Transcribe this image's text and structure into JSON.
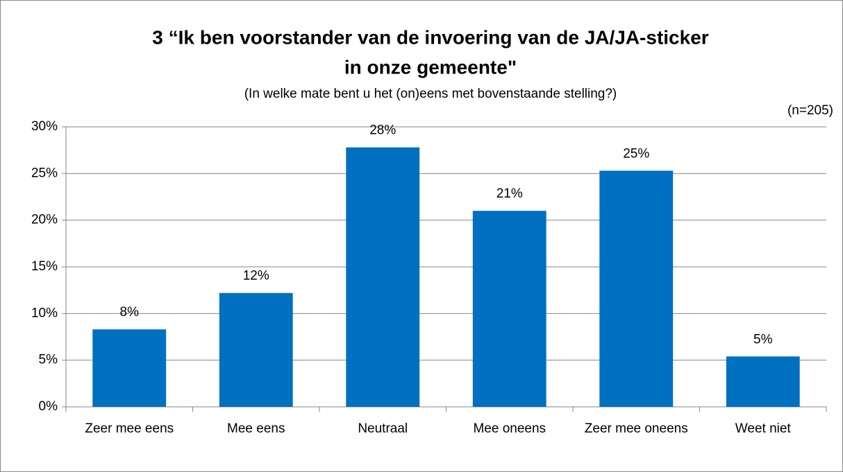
{
  "chart_data": {
    "type": "bar",
    "title": [
      "3 “Ik ben voorstander van de invoering van de JA/JA-sticker",
      "in onze gemeente\""
    ],
    "subtitle": "(In welke mate bent u het (on)eens met bovenstaande stelling?)",
    "annotation": "(n=205)",
    "categories": [
      "Zeer mee eens",
      "Mee eens",
      "Neutraal",
      "Mee oneens",
      "Zeer mee oneens",
      "Weet niet"
    ],
    "values": [
      8.3,
      12.2,
      27.8,
      21.0,
      25.3,
      5.4
    ],
    "value_labels": [
      "8%",
      "12%",
      "28%",
      "21%",
      "25%",
      "5%"
    ],
    "color": "#0070c0",
    "ylim": [
      0,
      30
    ],
    "yticks": [
      {
        "value": 0,
        "label": "0%"
      },
      {
        "value": 5,
        "label": "5%"
      },
      {
        "value": 10,
        "label": "10%"
      },
      {
        "value": 15,
        "label": "15%"
      },
      {
        "value": 20,
        "label": "20%"
      },
      {
        "value": 25,
        "label": "25%"
      },
      {
        "value": 30,
        "label": "30%"
      }
    ],
    "grid": true
  }
}
